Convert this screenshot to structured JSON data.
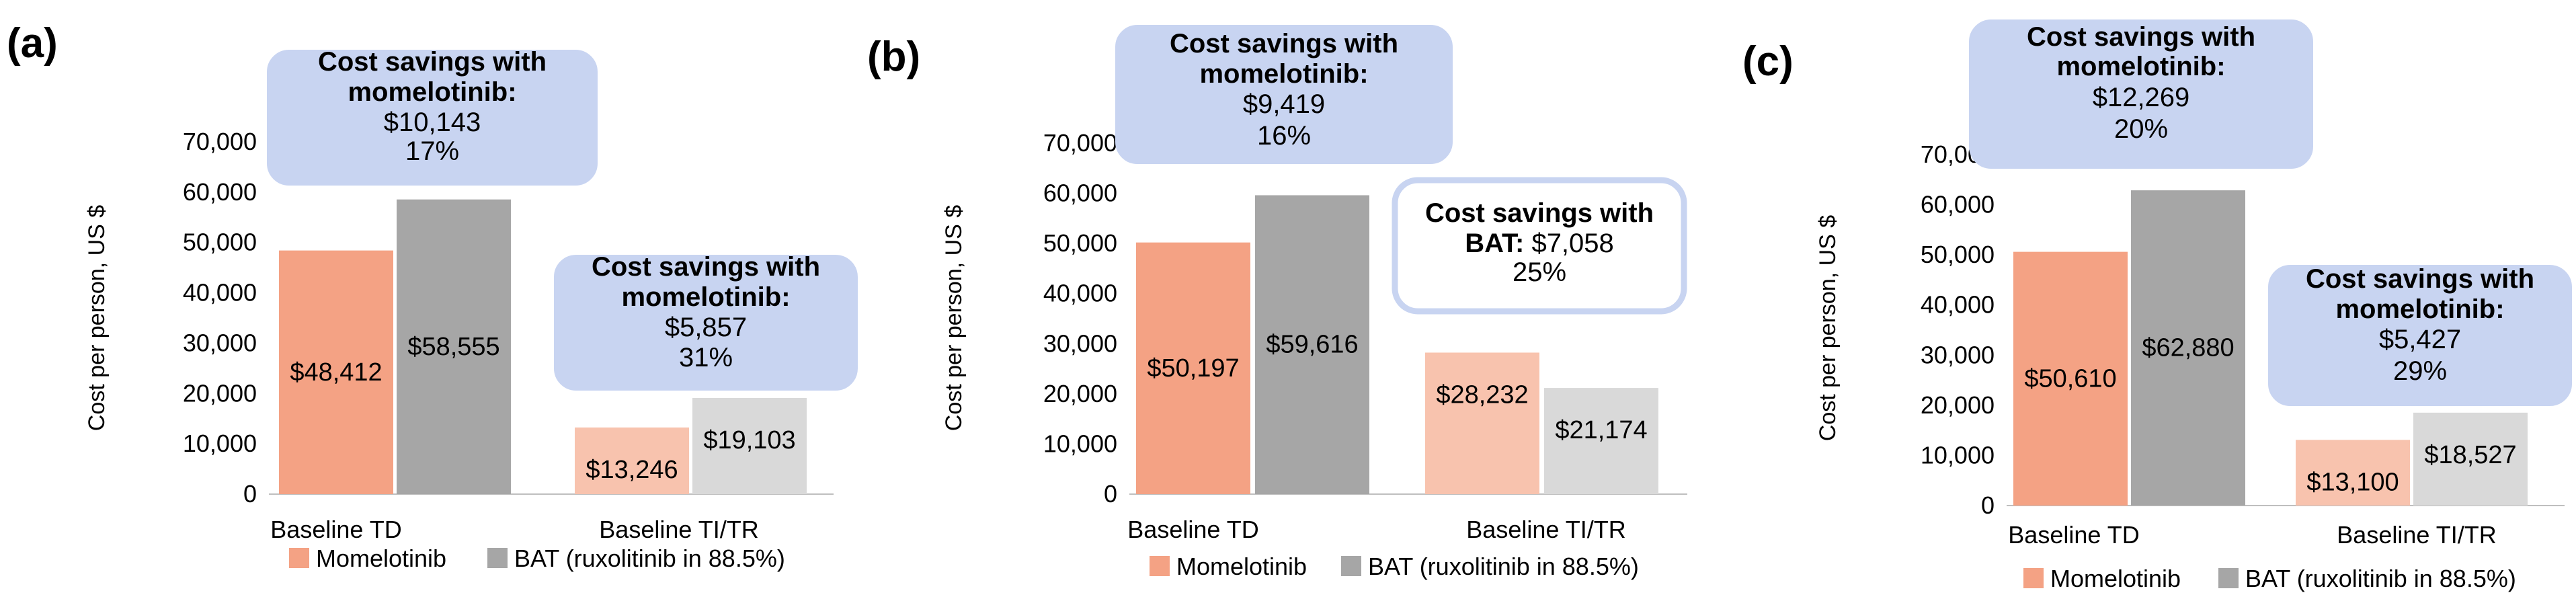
{
  "colors": {
    "momelotinib_td": "#f4a284",
    "bat_td": "#a6a6a6",
    "momelotinib_ti": "#f8c3ae",
    "bat_ti": "#d9d9d9",
    "callout_fill": "#c8d4f1",
    "callout_border": "#c8d4f1",
    "callout_white_fill": "#ffffff",
    "callout_white_border": "#c8d4f1",
    "axis": "#bfbfbf",
    "text": "#000000"
  },
  "chart_data": [
    {
      "type": "bar",
      "panel_label": "(a)",
      "ylabel": "Cost per person, US $",
      "ylim": [
        0,
        70000
      ],
      "yticks": [
        "0",
        "10,000",
        "20,000",
        "30,000",
        "40,000",
        "50,000",
        "60,000",
        "70,000"
      ],
      "categories": [
        "Baseline TD",
        "Baseline TI/TR"
      ],
      "series": [
        {
          "name": "Momelotinib",
          "values": [
            48412,
            13246
          ],
          "labels": [
            "$48,412",
            "$13,246"
          ]
        },
        {
          "name": "BAT (ruxolitinib in 88.5%)",
          "values": [
            58555,
            19103
          ],
          "labels": [
            "$58,555",
            "$19,103"
          ]
        }
      ],
      "annotations": [
        {
          "title_lines": [
            "Cost savings with",
            "momelotinib:"
          ],
          "lines": [
            "$10,143",
            "17%"
          ],
          "style": "filled"
        },
        {
          "title_lines": [
            "Cost savings with",
            "momelotinib:"
          ],
          "lines": [
            "$5,857",
            "31%"
          ],
          "style": "filled"
        }
      ]
    },
    {
      "type": "bar",
      "panel_label": "(b)",
      "ylabel": "Cost per person, US $",
      "ylim": [
        0,
        70000
      ],
      "yticks": [
        "0",
        "10,000",
        "20,000",
        "30,000",
        "40,000",
        "50,000",
        "60,000",
        "70,000"
      ],
      "categories": [
        "Baseline TD",
        "Baseline TI/TR"
      ],
      "series": [
        {
          "name": "Momelotinib",
          "values": [
            50197,
            28232
          ],
          "labels": [
            "$50,197",
            "$28,232"
          ]
        },
        {
          "name": "BAT (ruxolitinib in 88.5%)",
          "values": [
            59616,
            21174
          ],
          "labels": [
            "$59,616",
            "$21,174"
          ]
        }
      ],
      "annotations": [
        {
          "title_lines": [
            "Cost savings with",
            "momelotinib:"
          ],
          "lines": [
            "$9,419",
            "16%"
          ],
          "style": "filled"
        },
        {
          "title_lines": [
            "Cost savings with"
          ],
          "mixed_line": {
            "bold": "BAT:",
            "normal": " $7,058"
          },
          "lines": [
            "25%"
          ],
          "style": "outline"
        }
      ]
    },
    {
      "type": "bar",
      "panel_label": "(c)",
      "ylabel": "Cost per person, US $",
      "ylim": [
        0,
        70000
      ],
      "yticks": [
        "0",
        "10,000",
        "20,000",
        "30,000",
        "40,000",
        "50,000",
        "60,000",
        "70,000"
      ],
      "categories": [
        "Baseline TD",
        "Baseline TI/TR"
      ],
      "series": [
        {
          "name": "Momelotinib",
          "values": [
            50610,
            13100
          ],
          "labels": [
            "$50,610",
            "$13,100"
          ]
        },
        {
          "name": "BAT (ruxolitinib in 88.5%)",
          "values": [
            62880,
            18527
          ],
          "labels": [
            "$62,880",
            "$18,527"
          ]
        }
      ],
      "annotations": [
        {
          "title_lines": [
            "Cost savings with",
            "momelotinib:"
          ],
          "lines": [
            "$12,269",
            "20%"
          ],
          "style": "filled"
        },
        {
          "title_lines": [
            "Cost savings with",
            "momelotinib:"
          ],
          "lines": [
            "$5,427",
            "29%"
          ],
          "style": "filled"
        }
      ]
    }
  ]
}
